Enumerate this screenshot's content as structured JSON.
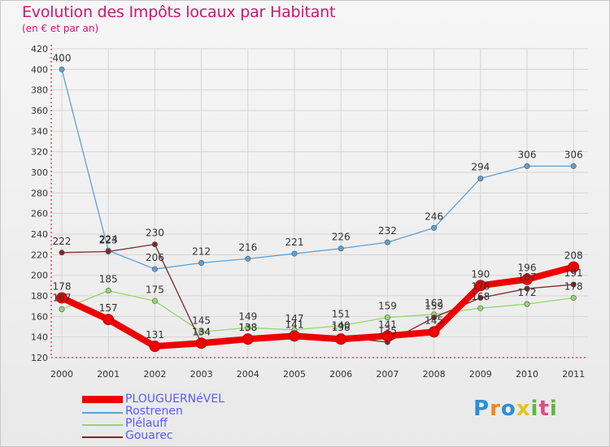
{
  "title": "Evolution des Impôts locaux par Habitant",
  "subtitle": "(en € et par an)",
  "logo": "Proxiti",
  "chart_data": {
    "type": "line",
    "title": "Evolution des Impôts locaux par Habitant",
    "subtitle": "(en € et par an)",
    "xlabel": "",
    "ylabel": "",
    "ylim": [
      120,
      420
    ],
    "yticks": [
      120,
      140,
      160,
      180,
      200,
      220,
      240,
      260,
      280,
      300,
      320,
      340,
      360,
      380,
      400,
      420
    ],
    "categories": [
      "2000",
      "2001",
      "2002",
      "2003",
      "2004",
      "2005",
      "2006",
      "2007",
      "2008",
      "2009",
      "2010",
      "2011"
    ],
    "grid": true,
    "legend_position": "bottom-left",
    "series": [
      {
        "name": "Rostrenen",
        "color": "#5fa0d4",
        "values": [
          400,
          224,
          206,
          212,
          216,
          221,
          226,
          232,
          246,
          294,
          306,
          306
        ],
        "labels": [
          "400",
          "224",
          "206",
          "212",
          "216",
          "221",
          "226",
          "232",
          "246",
          "294",
          "306",
          "306"
        ]
      },
      {
        "name": "Plélauff",
        "color": "#93d86a",
        "values": [
          167,
          185,
          175,
          145,
          149,
          147,
          151,
          159,
          162,
          168,
          172,
          178
        ],
        "labels": [
          "167",
          "185",
          "175",
          "145",
          "149",
          "147",
          "151",
          "159",
          "162",
          "168",
          "172",
          "178"
        ]
      },
      {
        "name": "Gouarec",
        "color": "#7a2a2a",
        "values": [
          222,
          223,
          230,
          134,
          138,
          141,
          140,
          135,
          159,
          178,
          187,
          191
        ],
        "labels": [
          "222",
          "223",
          "230",
          "134",
          "138",
          "141",
          "140",
          "135",
          "159",
          "178",
          "187",
          "191"
        ]
      },
      {
        "name": "PLOUGUERNéVEL",
        "color": "#ee0000",
        "values": [
          178,
          157,
          131,
          134,
          138,
          141,
          138,
          141,
          145,
          190,
          196,
          208
        ],
        "labels": [
          "178",
          "157",
          "131",
          "134",
          "138",
          "141",
          "138",
          "141",
          "145",
          "190",
          "196",
          "208"
        ],
        "highlight": true
      }
    ],
    "legend": [
      "PLOUGUERNéVEL",
      "Rostrenen",
      "Plélauff",
      "Gouarec"
    ]
  }
}
